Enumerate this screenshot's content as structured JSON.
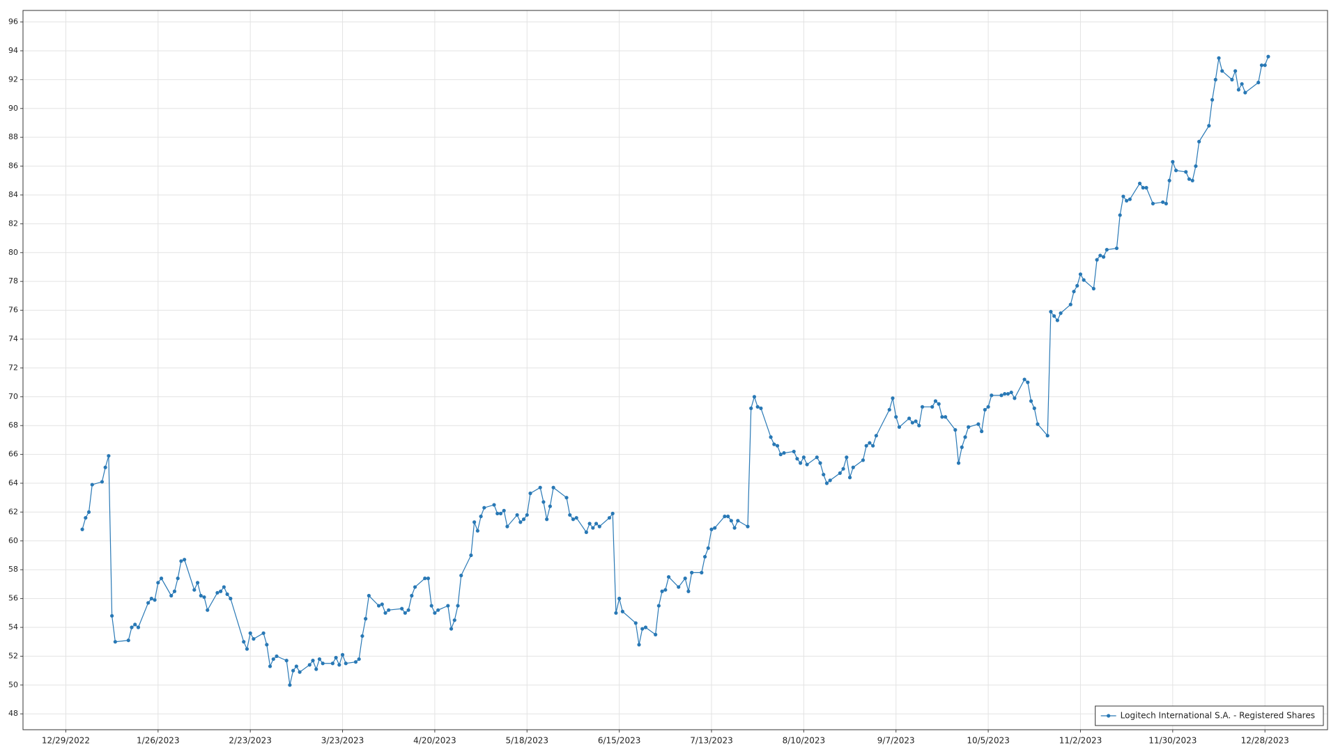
{
  "chart_data": {
    "type": "line",
    "xlim": [
      "12/16/2022",
      "1/16/2024"
    ],
    "xticks": [
      "12/29/2022",
      "1/26/2023",
      "2/23/2023",
      "3/23/2023",
      "4/20/2023",
      "5/18/2023",
      "6/15/2023",
      "7/13/2023",
      "8/10/2023",
      "9/7/2023",
      "10/5/2023",
      "11/2/2023",
      "11/30/2023",
      "12/28/2023"
    ],
    "ylim": [
      46.9,
      96.8
    ],
    "yticks": [
      48,
      50,
      52,
      54,
      56,
      58,
      60,
      62,
      64,
      66,
      68,
      70,
      72,
      74,
      76,
      78,
      80,
      82,
      84,
      86,
      88,
      90,
      92,
      94,
      96
    ],
    "grid": true,
    "legend": "lower right",
    "x": [
      "1/3/2023",
      "1/4/2023",
      "1/5/2023",
      "1/6/2023",
      "1/9/2023",
      "1/10/2023",
      "1/11/2023",
      "1/12/2023",
      "1/13/2023",
      "1/17/2023",
      "1/18/2023",
      "1/19/2023",
      "1/20/2023",
      "1/23/2023",
      "1/24/2023",
      "1/25/2023",
      "1/26/2023",
      "1/27/2023",
      "1/30/2023",
      "1/31/2023",
      "2/1/2023",
      "2/2/2023",
      "2/3/2023",
      "2/6/2023",
      "2/7/2023",
      "2/8/2023",
      "2/9/2023",
      "2/10/2023",
      "2/13/2023",
      "2/14/2023",
      "2/15/2023",
      "2/16/2023",
      "2/17/2023",
      "2/21/2023",
      "2/22/2023",
      "2/23/2023",
      "2/24/2023",
      "2/27/2023",
      "2/28/2023",
      "3/1/2023",
      "3/2/2023",
      "3/3/2023",
      "3/6/2023",
      "3/7/2023",
      "3/8/2023",
      "3/9/2023",
      "3/10/2023",
      "3/13/2023",
      "3/14/2023",
      "3/15/2023",
      "3/16/2023",
      "3/17/2023",
      "3/20/2023",
      "3/21/2023",
      "3/22/2023",
      "3/23/2023",
      "3/24/2023",
      "3/27/2023",
      "3/28/2023",
      "3/29/2023",
      "3/30/2023",
      "3/31/2023",
      "4/3/2023",
      "4/4/2023",
      "4/5/2023",
      "4/6/2023",
      "4/10/2023",
      "4/11/2023",
      "4/12/2023",
      "4/13/2023",
      "4/14/2023",
      "4/17/2023",
      "4/18/2023",
      "4/19/2023",
      "4/20/2023",
      "4/21/2023",
      "4/24/2023",
      "4/25/2023",
      "4/26/2023",
      "4/27/2023",
      "4/28/2023",
      "5/1/2023",
      "5/2/2023",
      "5/3/2023",
      "5/4/2023",
      "5/5/2023",
      "5/8/2023",
      "5/9/2023",
      "5/10/2023",
      "5/11/2023",
      "5/12/2023",
      "5/15/2023",
      "5/16/2023",
      "5/17/2023",
      "5/18/2023",
      "5/19/2023",
      "5/22/2023",
      "5/23/2023",
      "5/24/2023",
      "5/25/2023",
      "5/26/2023",
      "5/30/2023",
      "5/31/2023",
      "6/1/2023",
      "6/2/2023",
      "6/5/2023",
      "6/6/2023",
      "6/7/2023",
      "6/8/2023",
      "6/9/2023",
      "6/12/2023",
      "6/13/2023",
      "6/14/2023",
      "6/15/2023",
      "6/16/2023",
      "6/20/2023",
      "6/21/2023",
      "6/22/2023",
      "6/23/2023",
      "6/26/2023",
      "6/27/2023",
      "6/28/2023",
      "6/29/2023",
      "6/30/2023",
      "7/3/2023",
      "7/5/2023",
      "7/6/2023",
      "7/7/2023",
      "7/10/2023",
      "7/11/2023",
      "7/12/2023",
      "7/13/2023",
      "7/14/2023",
      "7/17/2023",
      "7/18/2023",
      "7/19/2023",
      "7/20/2023",
      "7/21/2023",
      "7/24/2023",
      "7/25/2023",
      "7/26/2023",
      "7/27/2023",
      "7/28/2023",
      "7/31/2023",
      "8/1/2023",
      "8/2/2023",
      "8/3/2023",
      "8/4/2023",
      "8/7/2023",
      "8/8/2023",
      "8/9/2023",
      "8/10/2023",
      "8/11/2023",
      "8/14/2023",
      "8/15/2023",
      "8/16/2023",
      "8/17/2023",
      "8/18/2023",
      "8/21/2023",
      "8/22/2023",
      "8/23/2023",
      "8/24/2023",
      "8/25/2023",
      "8/28/2023",
      "8/29/2023",
      "8/30/2023",
      "8/31/2023",
      "9/1/2023",
      "9/5/2023",
      "9/6/2023",
      "9/7/2023",
      "9/8/2023",
      "9/11/2023",
      "9/12/2023",
      "9/13/2023",
      "9/14/2023",
      "9/15/2023",
      "9/18/2023",
      "9/19/2023",
      "9/20/2023",
      "9/21/2023",
      "9/22/2023",
      "9/25/2023",
      "9/26/2023",
      "9/27/2023",
      "9/28/2023",
      "9/29/2023",
      "10/2/2023",
      "10/3/2023",
      "10/4/2023",
      "10/5/2023",
      "10/6/2023",
      "10/9/2023",
      "10/10/2023",
      "10/11/2023",
      "10/12/2023",
      "10/13/2023",
      "10/16/2023",
      "10/17/2023",
      "10/18/2023",
      "10/19/2023",
      "10/20/2023",
      "10/23/2023",
      "10/24/2023",
      "10/25/2023",
      "10/26/2023",
      "10/27/2023",
      "10/30/2023",
      "10/31/2023",
      "11/1/2023",
      "11/2/2023",
      "11/3/2023",
      "11/6/2023",
      "11/7/2023",
      "11/8/2023",
      "11/9/2023",
      "11/10/2023",
      "11/13/2023",
      "11/14/2023",
      "11/15/2023",
      "11/16/2023",
      "11/17/2023",
      "11/20/2023",
      "11/21/2023",
      "11/22/2023",
      "11/24/2023",
      "11/27/2023",
      "11/28/2023",
      "11/29/2023",
      "11/30/2023",
      "12/1/2023",
      "12/4/2023",
      "12/5/2023",
      "12/6/2023",
      "12/7/2023",
      "12/8/2023",
      "12/11/2023",
      "12/12/2023",
      "12/13/2023",
      "12/14/2023",
      "12/15/2023",
      "12/18/2023",
      "12/19/2023",
      "12/20/2023",
      "12/21/2023",
      "12/22/2023",
      "12/26/2023",
      "12/27/2023",
      "12/28/2023",
      "12/29/2023"
    ],
    "series": [
      {
        "name": "Logitech International S.A. - Registered Shares",
        "color": "#2878b5",
        "values": [
          60.8,
          61.6,
          62.0,
          63.9,
          64.1,
          65.1,
          65.9,
          54.8,
          53.0,
          53.1,
          54.0,
          54.2,
          54.0,
          55.7,
          56.0,
          55.9,
          57.1,
          57.4,
          56.2,
          56.5,
          57.4,
          58.6,
          58.7,
          56.6,
          57.1,
          56.2,
          56.1,
          55.2,
          56.4,
          56.5,
          56.8,
          56.3,
          56.0,
          53.0,
          52.5,
          53.6,
          53.2,
          53.6,
          52.8,
          51.3,
          51.8,
          52.0,
          51.7,
          50.0,
          51.0,
          51.3,
          50.9,
          51.4,
          51.7,
          51.1,
          51.8,
          51.5,
          51.5,
          51.9,
          51.4,
          52.1,
          51.5,
          51.6,
          51.8,
          53.4,
          54.6,
          56.2,
          55.5,
          55.6,
          55.0,
          55.2,
          55.3,
          55.0,
          55.2,
          56.2,
          56.8,
          57.4,
          57.4,
          55.5,
          55.0,
          55.2,
          55.5,
          53.9,
          54.5,
          55.5,
          57.6,
          59.0,
          61.3,
          60.7,
          61.7,
          62.3,
          62.5,
          61.9,
          61.9,
          62.1,
          61.0,
          61.8,
          61.3,
          61.5,
          61.8,
          63.3,
          63.7,
          62.7,
          61.5,
          62.4,
          63.7,
          63.0,
          61.8,
          61.5,
          61.6,
          60.6,
          61.2,
          60.9,
          61.2,
          61.0,
          61.6,
          61.9,
          55.0,
          56.0,
          55.1,
          54.3,
          52.8,
          53.9,
          54.0,
          53.5,
          55.5,
          56.5,
          56.6,
          57.5,
          56.8,
          57.4,
          56.5,
          57.8,
          57.8,
          58.9,
          59.5,
          60.8,
          60.9,
          61.7,
          61.7,
          61.4,
          60.9,
          61.4,
          61.0,
          69.2,
          70.0,
          69.3,
          69.2,
          67.2,
          66.7,
          66.6,
          66.0,
          66.1,
          66.2,
          65.7,
          65.4,
          65.8,
          65.3,
          65.8,
          65.4,
          64.6,
          64.0,
          64.2,
          64.7,
          65.0,
          65.8,
          64.4,
          65.1,
          65.6,
          66.6,
          66.8,
          66.6,
          67.3,
          69.1,
          69.9,
          68.6,
          67.9,
          68.5,
          68.2,
          68.3,
          68.0,
          69.3,
          69.3,
          69.7,
          69.5,
          68.6,
          68.6,
          67.7,
          65.4,
          66.5,
          67.2,
          67.9,
          68.1,
          67.6,
          69.1,
          69.3,
          70.1,
          70.1,
          70.2,
          70.2,
          70.3,
          69.9,
          71.2,
          71.0,
          69.7,
          69.2,
          68.1,
          67.3,
          75.9,
          75.6,
          75.3,
          75.8,
          76.4,
          77.3,
          77.7,
          78.5,
          78.1,
          77.5,
          79.5,
          79.8,
          79.7,
          80.2,
          80.3,
          82.6,
          83.9,
          83.6,
          83.7,
          84.8,
          84.5,
          84.5,
          83.4,
          83.5,
          83.4,
          85.0,
          86.3,
          85.7,
          85.6,
          85.1,
          85.0,
          86.0,
          87.7,
          88.8,
          90.6,
          92.0,
          93.5,
          92.6,
          92.0,
          92.6,
          91.3,
          91.7,
          91.1,
          91.8,
          93.0,
          93.0,
          93.6
        ]
      }
    ]
  }
}
